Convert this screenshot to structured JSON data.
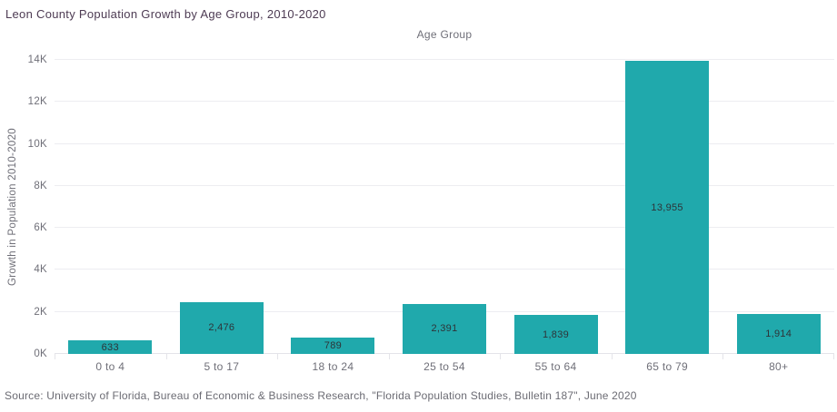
{
  "header": {
    "title": "Leon County Population Growth by Age Group, 2010-2020"
  },
  "footer": {
    "source_note": "Source: University of Florida, Bureau of Economic & Business Research, \"Florida Population Studies, Bulletin 187\", June 2020"
  },
  "chart_data": {
    "type": "bar",
    "title": "Leon County Population Growth by Age Group, 2010-2020",
    "xlabel": "Age Group",
    "ylabel": "Growth in Population 2010-2020",
    "categories": [
      "0 to 4",
      "5 to 17",
      "18 to 24",
      "25 to 54",
      "55 to 64",
      "65 to 79",
      "80+"
    ],
    "values": [
      633,
      2476,
      789,
      2391,
      1839,
      13955,
      1914
    ],
    "value_labels": [
      "633",
      "2,476",
      "789",
      "2,391",
      "1,839",
      "13,955",
      "1,914"
    ],
    "ylim": [
      0,
      14000
    ],
    "ytick_step": 2000,
    "ytick_labels": [
      "0K",
      "2K",
      "4K",
      "6K",
      "8K",
      "10K",
      "12K",
      "14K"
    ],
    "grid": true,
    "legend": "none",
    "bar_color": "#20a9ac",
    "bar_width_fraction": 0.75
  },
  "colors": {
    "accent_teal": "#20a9ac",
    "title_text": "#4d3b53",
    "axis_text": "#6f6f78",
    "gridline": "#ededf1",
    "background": "#ffffff"
  }
}
